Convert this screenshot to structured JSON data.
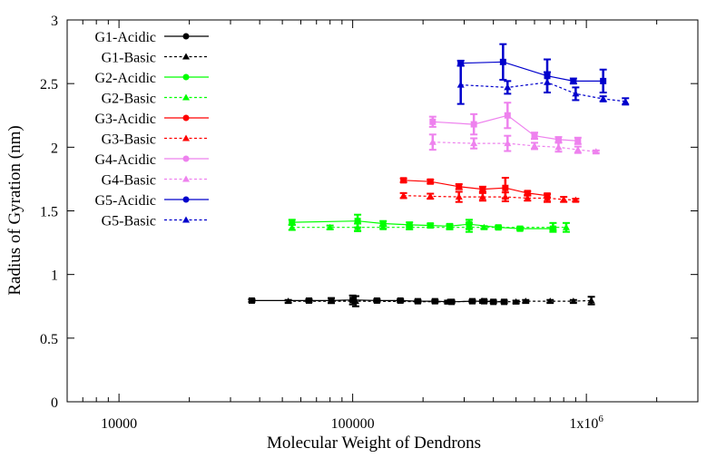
{
  "chart_data": {
    "type": "line",
    "title": "",
    "xlabel": "Molecular Weight of Dendrons",
    "ylabel": "Radius of Gyration (nm)",
    "xscale": "log",
    "xlim": [
      6000,
      3000000
    ],
    "ylim": [
      0,
      3
    ],
    "xticks": [
      10000,
      100000,
      1000000
    ],
    "xtick_labels": [
      "10000",
      "100000",
      "1x10^6"
    ],
    "yticks": [
      0,
      0.5,
      1,
      1.5,
      2,
      2.5,
      3
    ],
    "ytick_labels": [
      "0",
      "0.5",
      "1",
      "1.5",
      "2",
      "2.5",
      "3"
    ],
    "grid": false,
    "legend_position": "top-left",
    "series": [
      {
        "name": "G1-Acidic",
        "color": "#000000",
        "dashed": false,
        "points": [
          {
            "x": 37000,
            "y": 0.795,
            "err": 0.01
          },
          {
            "x": 65000,
            "y": 0.795,
            "err": 0.01
          },
          {
            "x": 81000,
            "y": 0.795,
            "err": 0.02
          },
          {
            "x": 100000,
            "y": 0.8,
            "err": 0.035
          },
          {
            "x": 127000,
            "y": 0.795,
            "err": 0.01
          },
          {
            "x": 160000,
            "y": 0.795,
            "err": 0.01
          },
          {
            "x": 190000,
            "y": 0.79,
            "err": 0.01
          },
          {
            "x": 225000,
            "y": 0.79,
            "err": 0.01
          },
          {
            "x": 265000,
            "y": 0.785,
            "err": 0.01
          },
          {
            "x": 325000,
            "y": 0.79,
            "err": 0.01
          },
          {
            "x": 365000,
            "y": 0.79,
            "err": 0.01
          },
          {
            "x": 400000,
            "y": 0.785,
            "err": 0.01
          },
          {
            "x": 445000,
            "y": 0.785,
            "err": 0.01
          }
        ]
      },
      {
        "name": "G1-Basic",
        "color": "#000000",
        "dashed": true,
        "points": [
          {
            "x": 53000,
            "y": 0.79,
            "err": 0.01
          },
          {
            "x": 103000,
            "y": 0.79,
            "err": 0.04
          },
          {
            "x": 255000,
            "y": 0.785,
            "err": 0.01
          },
          {
            "x": 360000,
            "y": 0.79,
            "err": 0.01
          },
          {
            "x": 500000,
            "y": 0.785,
            "err": 0.01
          },
          {
            "x": 550000,
            "y": 0.79,
            "err": 0.01
          },
          {
            "x": 700000,
            "y": 0.79,
            "err": 0.01
          },
          {
            "x": 880000,
            "y": 0.79,
            "err": 0.01
          },
          {
            "x": 1050000,
            "y": 0.795,
            "err": 0.03
          }
        ]
      },
      {
        "name": "G2-Acidic",
        "color": "#00ff00",
        "dashed": false,
        "points": [
          {
            "x": 55000,
            "y": 1.41,
            "err": 0.02
          },
          {
            "x": 105000,
            "y": 1.42,
            "err": 0.05
          },
          {
            "x": 135000,
            "y": 1.4,
            "err": 0.02
          },
          {
            "x": 175000,
            "y": 1.39,
            "err": 0.02
          },
          {
            "x": 215000,
            "y": 1.385,
            "err": 0.015
          },
          {
            "x": 260000,
            "y": 1.38,
            "err": 0.015
          },
          {
            "x": 315000,
            "y": 1.395,
            "err": 0.035
          },
          {
            "x": 420000,
            "y": 1.37,
            "err": 0.01
          },
          {
            "x": 520000,
            "y": 1.36,
            "err": 0.01
          },
          {
            "x": 720000,
            "y": 1.36,
            "err": 0.01
          }
        ]
      },
      {
        "name": "G2-Basic",
        "color": "#00ff00",
        "dashed": true,
        "points": [
          {
            "x": 55000,
            "y": 1.37,
            "err": 0.02
          },
          {
            "x": 80000,
            "y": 1.37,
            "err": 0.015
          },
          {
            "x": 105000,
            "y": 1.37,
            "err": 0.03
          },
          {
            "x": 135000,
            "y": 1.37,
            "err": 0.01
          },
          {
            "x": 175000,
            "y": 1.37,
            "err": 0.015
          },
          {
            "x": 260000,
            "y": 1.37,
            "err": 0.015
          },
          {
            "x": 315000,
            "y": 1.37,
            "err": 0.035
          },
          {
            "x": 365000,
            "y": 1.37,
            "err": 0.01
          },
          {
            "x": 720000,
            "y": 1.37,
            "err": 0.035
          },
          {
            "x": 820000,
            "y": 1.37,
            "err": 0.035
          }
        ]
      },
      {
        "name": "G3-Acidic",
        "color": "#ff0000",
        "dashed": false,
        "points": [
          {
            "x": 165000,
            "y": 1.74,
            "err": 0.015
          },
          {
            "x": 215000,
            "y": 1.73,
            "err": 0.015
          },
          {
            "x": 285000,
            "y": 1.69,
            "err": 0.02
          },
          {
            "x": 360000,
            "y": 1.67,
            "err": 0.02
          },
          {
            "x": 450000,
            "y": 1.68,
            "err": 0.08
          },
          {
            "x": 560000,
            "y": 1.64,
            "err": 0.015
          },
          {
            "x": 680000,
            "y": 1.62,
            "err": 0.015
          }
        ]
      },
      {
        "name": "G3-Basic",
        "color": "#ff0000",
        "dashed": true,
        "points": [
          {
            "x": 165000,
            "y": 1.62,
            "err": 0.02
          },
          {
            "x": 215000,
            "y": 1.615,
            "err": 0.02
          },
          {
            "x": 285000,
            "y": 1.61,
            "err": 0.04
          },
          {
            "x": 360000,
            "y": 1.61,
            "err": 0.03
          },
          {
            "x": 450000,
            "y": 1.61,
            "err": 0.035
          },
          {
            "x": 560000,
            "y": 1.6,
            "err": 0.02
          },
          {
            "x": 680000,
            "y": 1.6,
            "err": 0.03
          },
          {
            "x": 800000,
            "y": 1.59,
            "err": 0.02
          },
          {
            "x": 900000,
            "y": 1.585,
            "err": 0.01
          }
        ]
      },
      {
        "name": "G4-Acidic",
        "color": "#ee82ee",
        "dashed": false,
        "points": [
          {
            "x": 220000,
            "y": 2.2,
            "err": 0.04
          },
          {
            "x": 330000,
            "y": 2.18,
            "err": 0.08
          },
          {
            "x": 460000,
            "y": 2.25,
            "err": 0.1
          },
          {
            "x": 600000,
            "y": 2.09,
            "err": 0.025
          },
          {
            "x": 760000,
            "y": 2.06,
            "err": 0.02
          },
          {
            "x": 920000,
            "y": 2.05,
            "err": 0.025
          }
        ]
      },
      {
        "name": "G4-Basic",
        "color": "#ee82ee",
        "dashed": true,
        "points": [
          {
            "x": 220000,
            "y": 2.04,
            "err": 0.06
          },
          {
            "x": 330000,
            "y": 2.03,
            "err": 0.04
          },
          {
            "x": 460000,
            "y": 2.03,
            "err": 0.06
          },
          {
            "x": 600000,
            "y": 2.01,
            "err": 0.025
          },
          {
            "x": 760000,
            "y": 2.0,
            "err": 0.035
          },
          {
            "x": 920000,
            "y": 1.98,
            "err": 0.025
          },
          {
            "x": 1100000,
            "y": 1.965,
            "err": 0.01
          }
        ]
      },
      {
        "name": "G5-Acidic",
        "color": "#0000cc",
        "dashed": false,
        "points": [
          {
            "x": 290000,
            "y": 2.66,
            "err": 0.02
          },
          {
            "x": 440000,
            "y": 2.67,
            "err": 0.14
          },
          {
            "x": 680000,
            "y": 2.56,
            "err": 0.13
          },
          {
            "x": 880000,
            "y": 2.52,
            "err": 0.02
          },
          {
            "x": 1180000,
            "y": 2.52,
            "err": 0.09
          }
        ]
      },
      {
        "name": "G5-Basic",
        "color": "#0000cc",
        "dashed": true,
        "points": [
          {
            "x": 290000,
            "y": 2.49,
            "err": 0.15
          },
          {
            "x": 460000,
            "y": 2.47,
            "err": 0.05
          },
          {
            "x": 680000,
            "y": 2.51,
            "err": 0.08
          },
          {
            "x": 900000,
            "y": 2.42,
            "err": 0.05
          },
          {
            "x": 1180000,
            "y": 2.38,
            "err": 0.02
          },
          {
            "x": 1470000,
            "y": 2.36,
            "err": 0.025
          }
        ]
      }
    ]
  }
}
